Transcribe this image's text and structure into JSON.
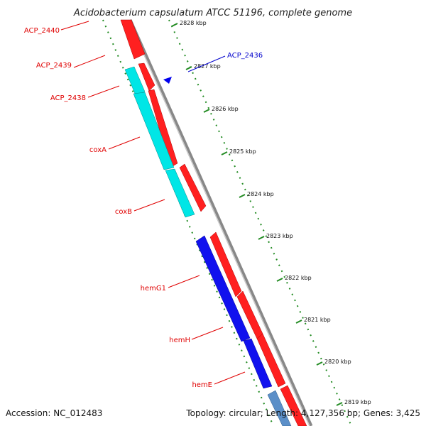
{
  "title": "Acidobacterium capsulatum ATCC 51196, complete genome",
  "footer": {
    "accession": "Accession: NC_012483",
    "summary": "Topology: circular; Length: 4,127,356 bp; Genes: 3,425"
  },
  "colors": {
    "forward": "#ff0000",
    "reverse": "#00e6e6",
    "reverse_dark": "#0000ee",
    "label_red": "#e00000",
    "label_blue": "#0000cc",
    "tick": "#228b22",
    "backbone": "#888888"
  },
  "ticks": [
    {
      "label": "2828 kbp",
      "kbp": 2828
    },
    {
      "label": "2827 kbp",
      "kbp": 2827
    },
    {
      "label": "2826 kbp",
      "kbp": 2826
    },
    {
      "label": "2825 kbp",
      "kbp": 2825
    },
    {
      "label": "2824 kbp",
      "kbp": 2824
    },
    {
      "label": "2823 kbp",
      "kbp": 2823
    },
    {
      "label": "2822 kbp",
      "kbp": 2822
    },
    {
      "label": "2821 kbp",
      "kbp": 2821
    },
    {
      "label": "2820 kbp",
      "kbp": 2820
    },
    {
      "label": "2819 kbp",
      "kbp": 2819
    }
  ],
  "gene_labels": [
    {
      "name": "ACP_2440",
      "color": "red"
    },
    {
      "name": "ACP_2439",
      "color": "red"
    },
    {
      "name": "ACP_2438",
      "color": "red"
    },
    {
      "name": "coxA",
      "color": "red"
    },
    {
      "name": "coxB",
      "color": "red"
    },
    {
      "name": "hemG1",
      "color": "red"
    },
    {
      "name": "hemH",
      "color": "red"
    },
    {
      "name": "hemE",
      "color": "red"
    },
    {
      "name": "ACP_2436",
      "color": "blue"
    }
  ]
}
